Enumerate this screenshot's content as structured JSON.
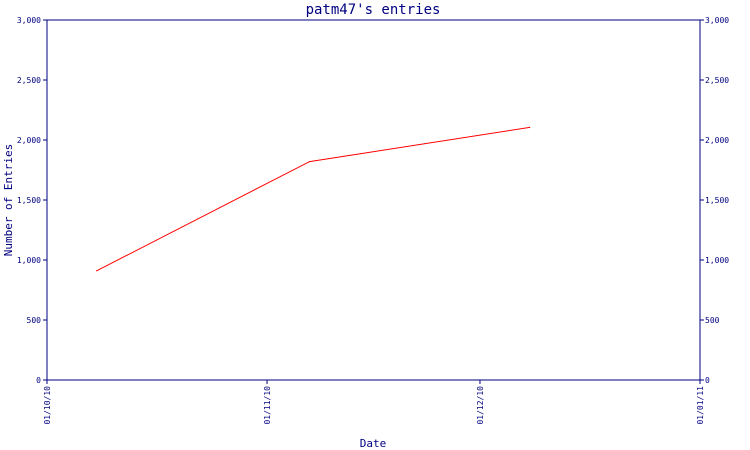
{
  "chart_data": {
    "type": "line",
    "title": "patm47's entries",
    "xlabel": "Date",
    "ylabel": "Number of Entries",
    "x_ticks": [
      "01/10/10",
      "01/11/10",
      "01/12/10",
      "01/01/11"
    ],
    "y_ticks": [
      "0",
      "500",
      "1,000",
      "1,500",
      "2,000",
      "2,500",
      "3,000"
    ],
    "y_tick_values": [
      0,
      500,
      1000,
      1500,
      2000,
      2500,
      3000
    ],
    "xlim": [
      "2010-10-01",
      "2011-01-01"
    ],
    "ylim": [
      0,
      3000
    ],
    "grid": false,
    "legend": "none",
    "series": [
      {
        "x": [
          "2010-10-08",
          "2010-11-07",
          "2010-12-08"
        ],
        "y": [
          910,
          1820,
          2105
        ],
        "color": "#ff0000"
      }
    ],
    "colors": {
      "axis": "#000080",
      "text": "#000080",
      "line": "#ff0000"
    }
  }
}
